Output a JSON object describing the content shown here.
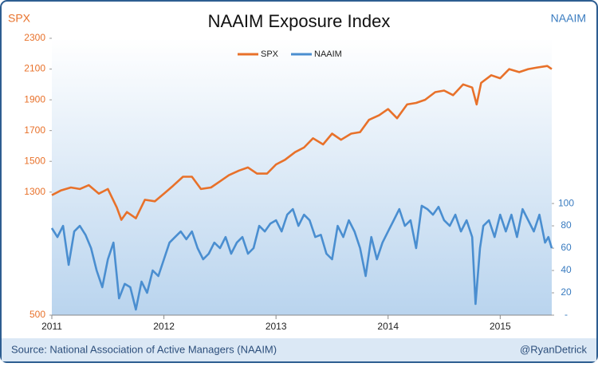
{
  "chart_data": {
    "type": "line",
    "title": "NAAIM Exposure Index",
    "y_label": "SPX",
    "y2_label": "NAAIM",
    "source": "Source:  National Association of Active Managers (NAAIM)",
    "credit": "@RyanDetrick",
    "xlim": [
      2011,
      2015.46
    ],
    "xticks": [
      2011,
      2012,
      2013,
      2014,
      2015
    ],
    "ylim": [
      500,
      2300
    ],
    "yticks": [
      500,
      1300,
      1500,
      1700,
      1900,
      2100,
      2300
    ],
    "y2lim": [
      0,
      248
    ],
    "y2ticks": [
      {
        "value": 0,
        "label": "-"
      },
      20,
      40,
      60,
      80,
      100
    ],
    "legend": "top",
    "series": [
      {
        "name": "SPX",
        "color": "#e8712a",
        "x": [
          2011.0,
          2011.08,
          2011.17,
          2011.25,
          2011.33,
          2011.42,
          2011.5,
          2011.58,
          2011.62,
          2011.67,
          2011.75,
          2011.83,
          2011.92,
          2012.0,
          2012.08,
          2012.17,
          2012.25,
          2012.33,
          2012.42,
          2012.5,
          2012.58,
          2012.67,
          2012.75,
          2012.83,
          2012.92,
          2013.0,
          2013.08,
          2013.17,
          2013.25,
          2013.33,
          2013.42,
          2013.5,
          2013.58,
          2013.67,
          2013.75,
          2013.83,
          2013.92,
          2014.0,
          2014.08,
          2014.17,
          2014.25,
          2014.33,
          2014.42,
          2014.5,
          2014.58,
          2014.67,
          2014.75,
          2014.79,
          2014.83,
          2014.92,
          2015.0,
          2015.08,
          2015.17,
          2015.25,
          2015.33,
          2015.42,
          2015.46
        ],
        "values": [
          1280,
          1310,
          1330,
          1320,
          1345,
          1290,
          1320,
          1200,
          1120,
          1170,
          1130,
          1250,
          1240,
          1290,
          1340,
          1400,
          1400,
          1320,
          1330,
          1370,
          1410,
          1440,
          1460,
          1420,
          1420,
          1480,
          1510,
          1560,
          1590,
          1650,
          1610,
          1680,
          1640,
          1680,
          1690,
          1770,
          1800,
          1840,
          1780,
          1870,
          1880,
          1900,
          1950,
          1960,
          1930,
          2000,
          1980,
          1870,
          2010,
          2060,
          2040,
          2100,
          2080,
          2100,
          2110,
          2120,
          2100
        ]
      },
      {
        "name": "NAAIM",
        "color": "#4a8ed0",
        "axis": "y2",
        "x": [
          2011.0,
          2011.05,
          2011.1,
          2011.15,
          2011.2,
          2011.25,
          2011.3,
          2011.35,
          2011.4,
          2011.45,
          2011.5,
          2011.55,
          2011.6,
          2011.65,
          2011.7,
          2011.75,
          2011.8,
          2011.85,
          2011.9,
          2011.95,
          2012.0,
          2012.05,
          2012.1,
          2012.15,
          2012.2,
          2012.25,
          2012.3,
          2012.35,
          2012.4,
          2012.45,
          2012.5,
          2012.55,
          2012.6,
          2012.65,
          2012.7,
          2012.75,
          2012.8,
          2012.85,
          2012.9,
          2012.95,
          2013.0,
          2013.05,
          2013.1,
          2013.15,
          2013.2,
          2013.25,
          2013.3,
          2013.35,
          2013.4,
          2013.45,
          2013.5,
          2013.55,
          2013.6,
          2013.65,
          2013.7,
          2013.75,
          2013.8,
          2013.85,
          2013.9,
          2013.95,
          2014.0,
          2014.05,
          2014.1,
          2014.15,
          2014.2,
          2014.25,
          2014.3,
          2014.35,
          2014.4,
          2014.45,
          2014.5,
          2014.55,
          2014.6,
          2014.65,
          2014.7,
          2014.75,
          2014.78,
          2014.82,
          2014.85,
          2014.9,
          2014.95,
          2015.0,
          2015.05,
          2015.1,
          2015.15,
          2015.2,
          2015.25,
          2015.3,
          2015.35,
          2015.4,
          2015.43,
          2015.46
        ],
        "values": [
          78,
          70,
          80,
          45,
          75,
          80,
          72,
          60,
          40,
          25,
          50,
          65,
          15,
          28,
          25,
          5,
          30,
          20,
          40,
          35,
          50,
          65,
          70,
          75,
          68,
          75,
          60,
          50,
          55,
          65,
          60,
          70,
          55,
          65,
          70,
          55,
          60,
          80,
          75,
          82,
          85,
          75,
          90,
          95,
          80,
          90,
          85,
          70,
          72,
          55,
          50,
          80,
          70,
          85,
          75,
          60,
          35,
          70,
          50,
          65,
          75,
          85,
          95,
          80,
          85,
          60,
          98,
          95,
          90,
          97,
          85,
          80,
          90,
          75,
          85,
          70,
          10,
          60,
          80,
          85,
          70,
          90,
          75,
          90,
          70,
          95,
          85,
          75,
          90,
          65,
          70,
          60
        ]
      }
    ]
  }
}
